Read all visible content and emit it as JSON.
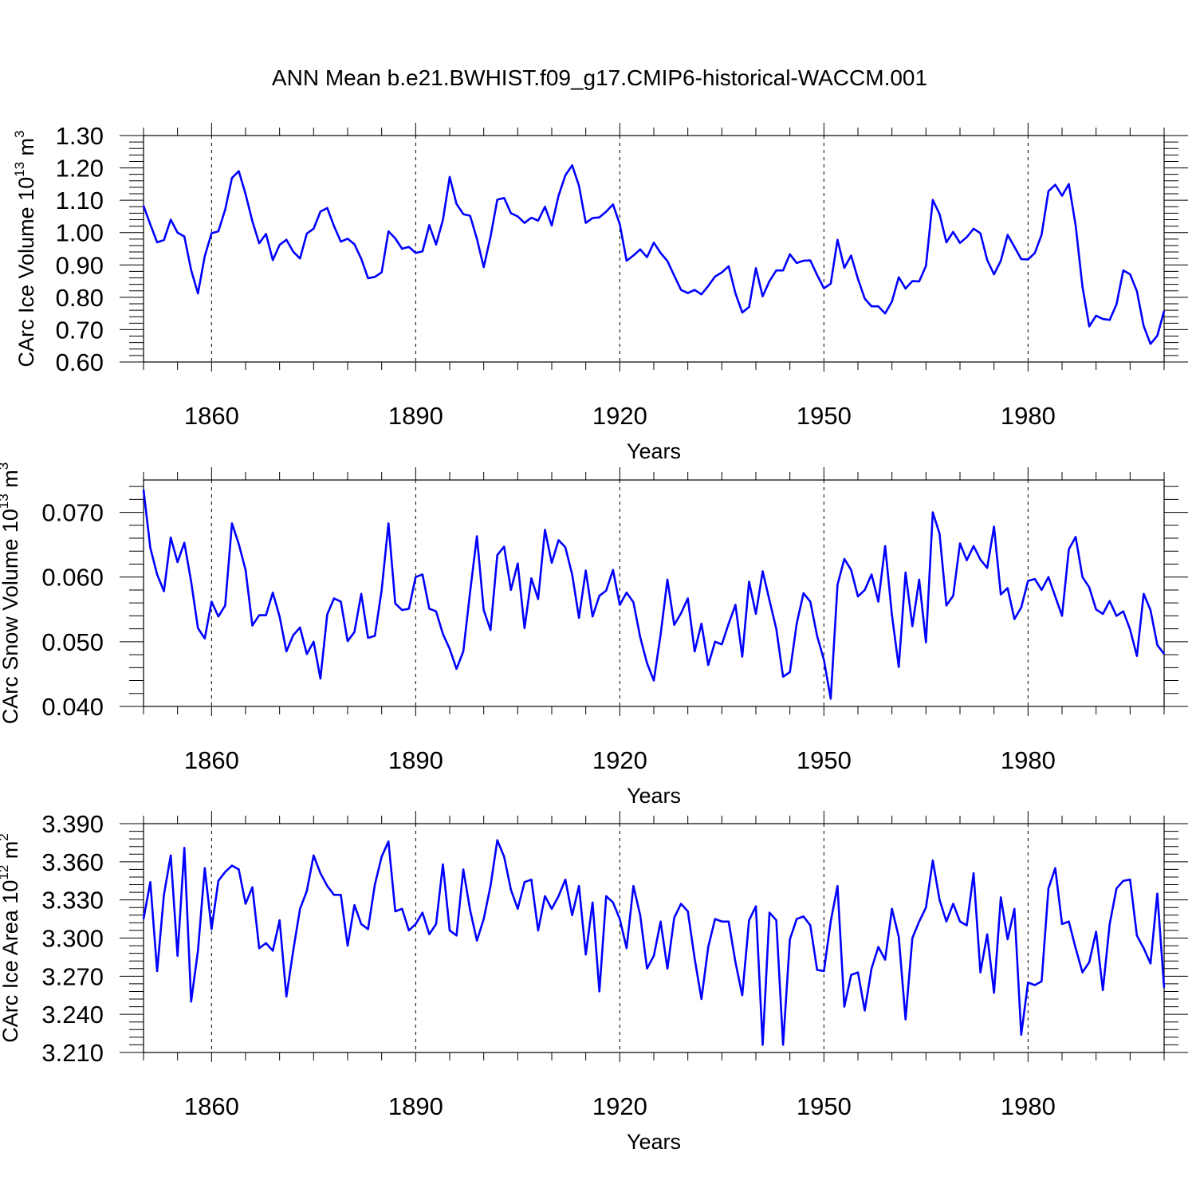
{
  "title": "ANN Mean b.e21.BWHIST.f09_g17.CMIP6-historical-WACCM.001",
  "chart_data": [
    {
      "type": "line",
      "ylabel": {
        "text": "CArc Ice Volume 10",
        "exp": "13",
        "unit": " m",
        "unit_exp": "3"
      },
      "xlabel": "Years",
      "xlim": [
        1850,
        2000
      ],
      "ylim": [
        0.6,
        1.3
      ],
      "xticks": [
        1860,
        1890,
        1920,
        1950,
        1980
      ],
      "xtick_labels": [
        "1860",
        "1890",
        "1920",
        "1950",
        "1980"
      ],
      "yticks": [
        0.6,
        0.7,
        0.8,
        0.9,
        1.0,
        1.1,
        1.2,
        1.3
      ],
      "ytick_labels": [
        "0.60",
        "0.70",
        "0.80",
        "0.90",
        "1.00",
        "1.10",
        "1.20",
        "1.30"
      ],
      "grid": "vertical dashed at major x ticks",
      "color": "#0000ff",
      "x_start": 1850,
      "values": [
        1.083,
        1.025,
        0.97,
        0.977,
        1.04,
        1.0,
        0.988,
        0.884,
        0.812,
        0.927,
        0.998,
        1.004,
        1.071,
        1.169,
        1.19,
        1.119,
        1.035,
        0.967,
        0.996,
        0.915,
        0.962,
        0.978,
        0.941,
        0.92,
        0.997,
        1.012,
        1.065,
        1.076,
        1.02,
        0.972,
        0.981,
        0.964,
        0.919,
        0.859,
        0.863,
        0.877,
        1.004,
        0.982,
        0.95,
        0.956,
        0.937,
        0.942,
        1.023,
        0.963,
        1.039,
        1.172,
        1.089,
        1.057,
        1.052,
        0.981,
        0.893,
        0.987,
        1.102,
        1.107,
        1.06,
        1.05,
        1.03,
        1.046,
        1.037,
        1.08,
        1.022,
        1.114,
        1.177,
        1.208,
        1.145,
        1.03,
        1.045,
        1.047,
        1.065,
        1.087,
        1.026,
        0.913,
        0.929,
        0.948,
        0.924,
        0.969,
        0.937,
        0.912,
        0.867,
        0.823,
        0.813,
        0.823,
        0.809,
        0.835,
        0.864,
        0.877,
        0.896,
        0.812,
        0.753,
        0.77,
        0.89,
        0.803,
        0.85,
        0.883,
        0.883,
        0.933,
        0.906,
        0.913,
        0.914,
        0.869,
        0.828,
        0.842,
        0.978,
        0.891,
        0.929,
        0.857,
        0.796,
        0.772,
        0.772,
        0.75,
        0.787,
        0.862,
        0.827,
        0.85,
        0.849,
        0.897,
        1.101,
        1.057,
        0.97,
        1.002,
        0.968,
        0.986,
        1.012,
        0.998,
        0.915,
        0.871,
        0.913,
        0.993,
        0.956,
        0.918,
        0.917,
        0.937,
        0.994,
        1.128,
        1.148,
        1.114,
        1.15,
        1.022,
        0.833,
        0.71,
        0.743,
        0.733,
        0.73,
        0.778,
        0.883,
        0.871,
        0.819,
        0.711,
        0.656,
        0.681,
        0.758
      ]
    },
    {
      "type": "line",
      "ylabel": {
        "text": "CArc Snow Volume 10",
        "exp": "13",
        "unit": " m",
        "unit_exp": "3"
      },
      "xlabel": "Years",
      "xlim": [
        1850,
        2000
      ],
      "ylim": [
        0.04,
        0.075
      ],
      "xticks": [
        1860,
        1890,
        1920,
        1950,
        1980
      ],
      "xtick_labels": [
        "1860",
        "1890",
        "1920",
        "1950",
        "1980"
      ],
      "yticks": [
        0.04,
        0.05,
        0.06,
        0.07
      ],
      "ytick_labels": [
        "0.040",
        "0.050",
        "0.060",
        "0.070"
      ],
      "grid": "vertical dashed at major x ticks",
      "color": "#0000ff",
      "x_start": 1850,
      "values": [
        0.0735,
        0.0645,
        0.0604,
        0.0578,
        0.0661,
        0.0623,
        0.0653,
        0.0593,
        0.0521,
        0.0505,
        0.0562,
        0.0539,
        0.0556,
        0.0683,
        0.0651,
        0.0611,
        0.0525,
        0.0541,
        0.0541,
        0.0576,
        0.0539,
        0.0485,
        0.051,
        0.0522,
        0.0481,
        0.05,
        0.0443,
        0.0542,
        0.0567,
        0.0562,
        0.0501,
        0.0515,
        0.0574,
        0.0506,
        0.0509,
        0.058,
        0.0683,
        0.0559,
        0.0549,
        0.0551,
        0.06,
        0.0604,
        0.0551,
        0.0547,
        0.0512,
        0.0489,
        0.0458,
        0.0485,
        0.0577,
        0.0663,
        0.0549,
        0.0518,
        0.0634,
        0.0647,
        0.058,
        0.0621,
        0.0521,
        0.0598,
        0.0566,
        0.0673,
        0.0622,
        0.0657,
        0.0646,
        0.0604,
        0.0537,
        0.061,
        0.0539,
        0.0571,
        0.0579,
        0.0611,
        0.0557,
        0.0576,
        0.0561,
        0.0507,
        0.0467,
        0.044,
        0.0511,
        0.0596,
        0.0526,
        0.0544,
        0.0567,
        0.0485,
        0.0528,
        0.0464,
        0.05,
        0.0496,
        0.0528,
        0.0557,
        0.0477,
        0.0593,
        0.0543,
        0.0609,
        0.0564,
        0.052,
        0.0446,
        0.0453,
        0.0528,
        0.0575,
        0.0562,
        0.0509,
        0.0472,
        0.0412,
        0.0588,
        0.0628,
        0.0611,
        0.057,
        0.058,
        0.0604,
        0.0562,
        0.0648,
        0.0541,
        0.0461,
        0.0607,
        0.0524,
        0.0596,
        0.0499,
        0.07,
        0.0667,
        0.0556,
        0.0571,
        0.0652,
        0.0626,
        0.0648,
        0.0627,
        0.0614,
        0.0678,
        0.0573,
        0.0583,
        0.0535,
        0.0553,
        0.0594,
        0.0597,
        0.058,
        0.06,
        0.057,
        0.054,
        0.0643,
        0.0662,
        0.06,
        0.0584,
        0.055,
        0.0543,
        0.0563,
        0.054,
        0.0547,
        0.0519,
        0.0478,
        0.0574,
        0.0549,
        0.0495,
        0.0481
      ]
    },
    {
      "type": "line",
      "ylabel": {
        "text": "CArc Ice Area 10",
        "exp": "12",
        "unit": " m",
        "unit_exp": "2"
      },
      "xlabel": "Years",
      "xlim": [
        1850,
        2000
      ],
      "ylim": [
        3.21,
        3.39
      ],
      "xticks": [
        1860,
        1890,
        1920,
        1950,
        1980
      ],
      "xtick_labels": [
        "1860",
        "1890",
        "1920",
        "1950",
        "1980"
      ],
      "yticks": [
        3.21,
        3.24,
        3.27,
        3.3,
        3.33,
        3.36,
        3.39
      ],
      "ytick_labels": [
        "3.210",
        "3.240",
        "3.270",
        "3.300",
        "3.330",
        "3.360",
        "3.390"
      ],
      "grid": "vertical dashed at major x ticks",
      "color": "#0000ff",
      "x_start": 1850,
      "values": [
        3.315,
        3.344,
        3.274,
        3.334,
        3.365,
        3.286,
        3.371,
        3.25,
        3.29,
        3.355,
        3.307,
        3.345,
        3.352,
        3.357,
        3.354,
        3.327,
        3.34,
        3.292,
        3.296,
        3.29,
        3.314,
        3.254,
        3.29,
        3.323,
        3.337,
        3.365,
        3.351,
        3.341,
        3.334,
        3.334,
        3.294,
        3.326,
        3.311,
        3.307,
        3.342,
        3.364,
        3.376,
        3.321,
        3.323,
        3.306,
        3.311,
        3.32,
        3.303,
        3.311,
        3.358,
        3.306,
        3.302,
        3.354,
        3.322,
        3.298,
        3.315,
        3.341,
        3.377,
        3.364,
        3.338,
        3.323,
        3.344,
        3.346,
        3.306,
        3.333,
        3.323,
        3.333,
        3.346,
        3.318,
        3.341,
        3.287,
        3.328,
        3.258,
        3.333,
        3.328,
        3.315,
        3.292,
        3.341,
        3.318,
        3.276,
        3.286,
        3.313,
        3.276,
        3.316,
        3.327,
        3.321,
        3.284,
        3.252,
        3.293,
        3.315,
        3.313,
        3.313,
        3.281,
        3.255,
        3.314,
        3.325,
        3.216,
        3.32,
        3.314,
        3.216,
        3.299,
        3.315,
        3.317,
        3.31,
        3.275,
        3.274,
        3.313,
        3.341,
        3.246,
        3.271,
        3.273,
        3.243,
        3.276,
        3.293,
        3.283,
        3.323,
        3.301,
        3.236,
        3.3,
        3.313,
        3.324,
        3.361,
        3.33,
        3.313,
        3.327,
        3.313,
        3.31,
        3.351,
        3.273,
        3.303,
        3.257,
        3.332,
        3.299,
        3.323,
        3.224,
        3.265,
        3.263,
        3.266,
        3.339,
        3.355,
        3.311,
        3.313,
        3.292,
        3.273,
        3.281,
        3.305,
        3.259,
        3.311,
        3.339,
        3.345,
        3.346,
        3.302,
        3.292,
        3.28,
        3.335,
        3.261
      ]
    }
  ]
}
